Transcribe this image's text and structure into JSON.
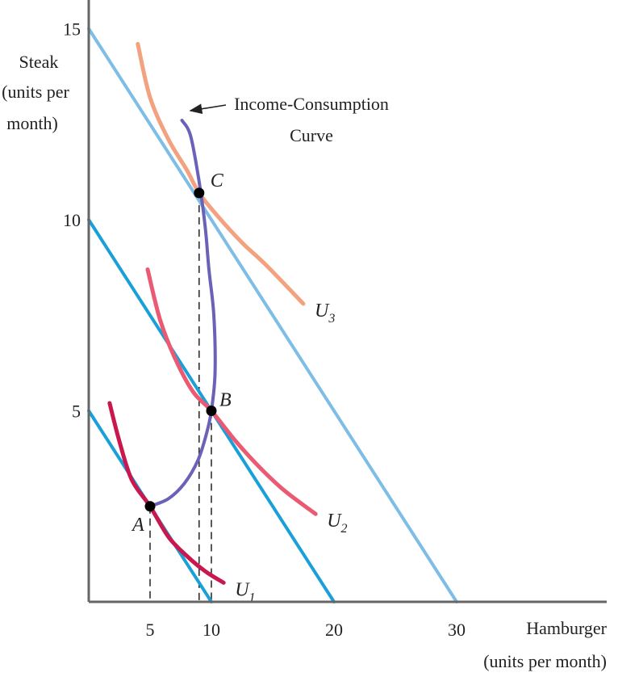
{
  "chart_data": {
    "type": "line",
    "xlabel": "Hamburger",
    "xlabel_sub": "(units per month)",
    "ylabel_lines": [
      "Steak",
      "(units per",
      "month)"
    ],
    "xlim": [
      0,
      40
    ],
    "ylim": [
      0,
      15
    ],
    "x_ticks": [
      "5",
      "10",
      "20",
      "30"
    ],
    "x_tick_values": [
      5,
      10,
      20,
      30
    ],
    "y_ticks": [
      "5",
      "10",
      "15"
    ],
    "y_tick_values": [
      5,
      10,
      15
    ],
    "budget_lines": [
      {
        "x": [
          0,
          10
        ],
        "y": [
          5,
          0
        ],
        "color": "#1aa0d8"
      },
      {
        "x": [
          0,
          20
        ],
        "y": [
          10,
          0
        ],
        "color": "#1aa0d8"
      },
      {
        "x": [
          0,
          30
        ],
        "y": [
          15,
          0
        ],
        "color": "#7dbde6"
      }
    ],
    "indifference_curves": [
      {
        "name": "U",
        "subscript": "1",
        "color": "#c8184e",
        "points": [
          [
            1.7,
            5.2
          ],
          [
            2.5,
            4.2
          ],
          [
            3.5,
            3.2
          ],
          [
            5,
            2.5
          ],
          [
            6.5,
            1.7
          ],
          [
            8,
            1.2
          ],
          [
            9.5,
            0.8
          ],
          [
            11,
            0.5
          ]
        ]
      },
      {
        "name": "U",
        "subscript": "2",
        "color": "#ea5a72",
        "points": [
          [
            4.8,
            8.7
          ],
          [
            5.8,
            7.4
          ],
          [
            7,
            6.4
          ],
          [
            8.5,
            5.5
          ],
          [
            10,
            5
          ],
          [
            12,
            4.2
          ],
          [
            14,
            3.5
          ],
          [
            16,
            2.9
          ],
          [
            18.5,
            2.3
          ]
        ]
      },
      {
        "name": "U",
        "subscript": "3",
        "color": "#f2a27e",
        "points": [
          [
            4,
            14.6
          ],
          [
            5,
            13.2
          ],
          [
            6.5,
            12.1
          ],
          [
            8,
            11.3
          ],
          [
            9,
            10.7
          ],
          [
            10.5,
            10.1
          ],
          [
            12.5,
            9.4
          ],
          [
            14.5,
            8.8
          ],
          [
            17.5,
            7.8
          ]
        ]
      }
    ],
    "income_consumption_curve": {
      "color": "#6b62b8",
      "points": [
        [
          5,
          2.5
        ],
        [
          6.5,
          2.7
        ],
        [
          7.8,
          3.1
        ],
        [
          8.9,
          3.7
        ],
        [
          9.6,
          4.4
        ],
        [
          10,
          5
        ],
        [
          10.3,
          6
        ],
        [
          10.2,
          7.5
        ],
        [
          9.8,
          8.7
        ],
        [
          9.5,
          9.8
        ],
        [
          9,
          11
        ],
        [
          8.3,
          12.2
        ],
        [
          7.6,
          12.6
        ]
      ]
    },
    "points": [
      {
        "label": "A",
        "x": 5,
        "y": 2.5
      },
      {
        "label": "B",
        "x": 10,
        "y": 5
      },
      {
        "label": "C",
        "x": 9,
        "y": 10.7
      }
    ],
    "annotation": {
      "lines": [
        "Income-Consumption",
        "Curve"
      ]
    }
  }
}
